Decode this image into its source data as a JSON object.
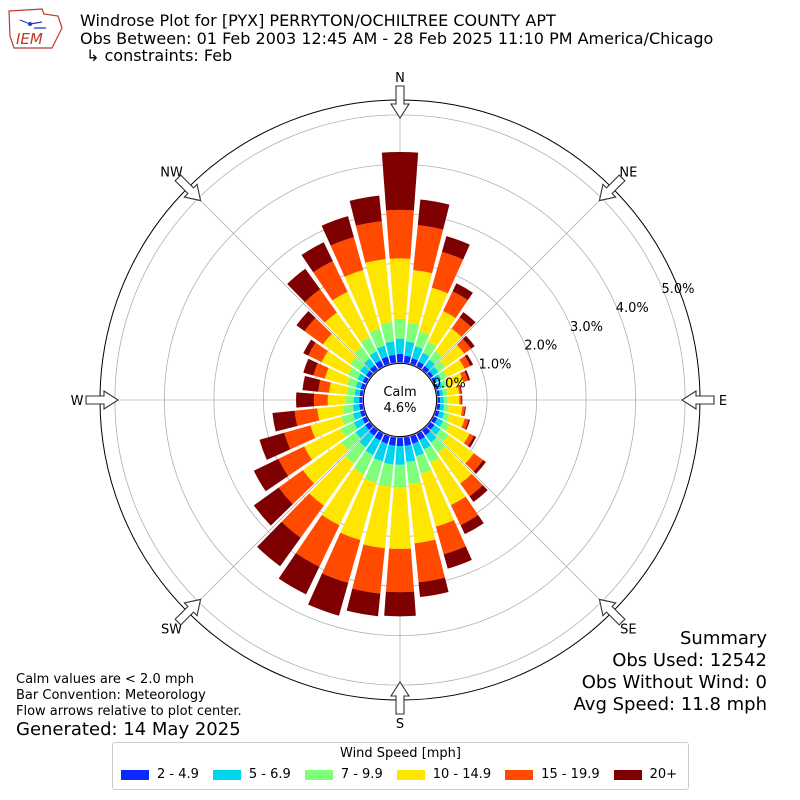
{
  "header": {
    "title": "Windrose Plot for [PYX] PERRYTON/OCHILTREE COUNTY APT",
    "obs_between": "Obs Between: 01 Feb 2003 12:45 AM - 28 Feb 2025 11:10 PM America/Chicago",
    "constraints": "↳ constraints: Feb",
    "logo_text": "IEM"
  },
  "calm": {
    "label": "Calm",
    "value": "4.6%"
  },
  "summary": {
    "heading": "Summary",
    "obs_used": "Obs Used: 12542",
    "obs_without_wind": "Obs Without Wind: 0",
    "avg_speed": "Avg Speed: 11.8 mph"
  },
  "notes": {
    "line1": "Calm values are < 2.0 mph",
    "line2": "Bar Convention: Meteorology",
    "line3": "Flow arrows relative to plot center.",
    "generated": "Generated: 14 May 2025"
  },
  "legend": {
    "title": "Wind Speed [mph]",
    "items": [
      {
        "label": "2 - 4.9",
        "color": "#0a28ff"
      },
      {
        "label": "5 - 6.9",
        "color": "#00d4ee"
      },
      {
        "label": "7 - 9.9",
        "color": "#7dff7a"
      },
      {
        "label": "10 - 14.9",
        "color": "#ffe600"
      },
      {
        "label": "15 - 19.9",
        "color": "#ff4a00"
      },
      {
        "label": "20+",
        "color": "#7f0000"
      }
    ]
  },
  "chart_data": {
    "type": "windrose",
    "bar_convention": "meteorology",
    "radial_offset_percent": -0.76,
    "radial_ticks": [
      "0.0%",
      "1.0%",
      "2.0%",
      "3.0%",
      "4.0%",
      "5.0%"
    ],
    "radial_tick_values": [
      0,
      1,
      2,
      3,
      4,
      5
    ],
    "rmax_percent": 5.3,
    "compass_labels": [
      "N",
      "NE",
      "E",
      "SE",
      "S",
      "SW",
      "W",
      "NW"
    ],
    "direction_count": 36,
    "directions_deg": [
      0,
      10,
      20,
      30,
      40,
      50,
      60,
      70,
      80,
      90,
      100,
      110,
      120,
      130,
      140,
      150,
      160,
      170,
      180,
      190,
      200,
      210,
      220,
      230,
      240,
      250,
      260,
      270,
      280,
      290,
      300,
      310,
      320,
      330,
      340,
      350
    ],
    "bin_labels": [
      "2 - 4.9",
      "5 - 6.9",
      "7 - 9.9",
      "10 - 14.9",
      "15 - 19.9",
      "20+"
    ],
    "cumulative_percent": [
      [
        0.17,
        0.48,
        0.88,
        2.1,
        3.08,
        4.25
      ],
      [
        0.14,
        0.43,
        0.81,
        1.88,
        2.79,
        3.31
      ],
      [
        0.12,
        0.37,
        0.68,
        1.6,
        2.35,
        2.68
      ],
      [
        0.1,
        0.3,
        0.55,
        1.24,
        1.68,
        1.86
      ],
      [
        0.09,
        0.25,
        0.46,
        1.02,
        1.3,
        1.43
      ],
      [
        0.07,
        0.2,
        0.37,
        0.84,
        1.01,
        1.1
      ],
      [
        0.06,
        0.17,
        0.3,
        0.69,
        0.82,
        0.88
      ],
      [
        0.05,
        0.14,
        0.24,
        0.57,
        0.67,
        0.71
      ],
      [
        0.05,
        0.12,
        0.2,
        0.44,
        0.48,
        0.5
      ],
      [
        0.05,
        0.12,
        0.2,
        0.44,
        0.48,
        0.5
      ],
      [
        0.06,
        0.14,
        0.23,
        0.51,
        0.56,
        0.58
      ],
      [
        0.07,
        0.17,
        0.28,
        0.6,
        0.68,
        0.71
      ],
      [
        0.08,
        0.21,
        0.36,
        0.8,
        0.9,
        0.95
      ],
      [
        0.1,
        0.25,
        0.45,
        1.08,
        1.31,
        1.38
      ],
      [
        0.12,
        0.3,
        0.55,
        1.32,
        1.64,
        1.78
      ],
      [
        0.14,
        0.35,
        0.65,
        1.6,
        2.05,
        2.25
      ],
      [
        0.16,
        0.42,
        0.79,
        1.9,
        2.48,
        2.78
      ],
      [
        0.17,
        0.5,
        0.95,
        2.15,
        2.94,
        3.24
      ],
      [
        0.17,
        0.55,
        1.0,
        2.25,
        3.12,
        3.61
      ],
      [
        0.17,
        0.55,
        1.0,
        2.25,
        3.17,
        3.63
      ],
      [
        0.16,
        0.53,
        0.98,
        2.18,
        3.08,
        3.77
      ],
      [
        0.15,
        0.48,
        0.91,
        2.05,
        2.98,
        3.6
      ],
      [
        0.13,
        0.42,
        0.82,
        1.87,
        2.67,
        3.38
      ],
      [
        0.11,
        0.35,
        0.7,
        1.66,
        2.26,
        2.88
      ],
      [
        0.09,
        0.28,
        0.57,
        1.39,
        1.97,
        2.52
      ],
      [
        0.08,
        0.23,
        0.47,
        1.12,
        1.67,
        2.19
      ],
      [
        0.07,
        0.2,
        0.4,
        0.92,
        1.38,
        1.83
      ],
      [
        0.06,
        0.17,
        0.34,
        0.7,
        0.98,
        1.34
      ],
      [
        0.06,
        0.16,
        0.32,
        0.68,
        0.9,
        1.22
      ],
      [
        0.07,
        0.17,
        0.35,
        0.82,
        1.06,
        1.27
      ],
      [
        0.08,
        0.2,
        0.41,
        1.0,
        1.3,
        1.41
      ],
      [
        0.09,
        0.24,
        0.48,
        1.16,
        1.62,
        1.82
      ],
      [
        0.11,
        0.28,
        0.56,
        1.42,
        2.0,
        2.51
      ],
      [
        0.13,
        0.33,
        0.65,
        1.67,
        2.36,
        2.78
      ],
      [
        0.15,
        0.38,
        0.74,
        1.97,
        2.66,
        3.1
      ],
      [
        0.16,
        0.43,
        0.82,
        2.1,
        2.87,
        3.39
      ]
    ]
  }
}
